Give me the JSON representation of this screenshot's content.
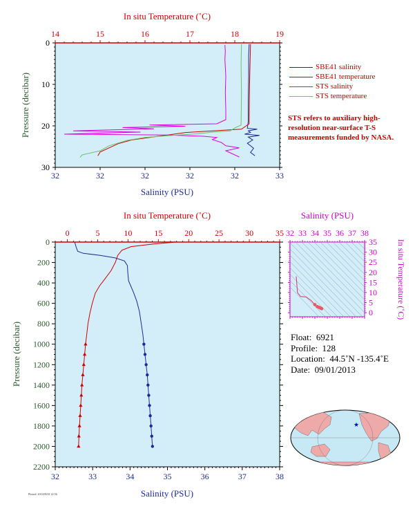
{
  "chart_data": [
    {
      "id": "top",
      "type": "line",
      "title_top_axis": "In situ Temperature (˚C)",
      "xlabel": "Salinity (PSU)",
      "ylabel": "Pressure (decibar)",
      "y_range": [
        0,
        30
      ],
      "y_ticks": [
        "0",
        "10",
        "20",
        "30"
      ],
      "temp_range": [
        14,
        19
      ],
      "temp_ticks": [
        "14",
        "15",
        "16",
        "17",
        "18",
        "19"
      ],
      "sal_ticks": [
        "32",
        "32",
        "32",
        "32",
        "32",
        "33"
      ],
      "series": [
        {
          "name": "SBE41 salinity",
          "color": "#1a2a9a",
          "points": [
            [
              18.32,
              0.3
            ],
            [
              18.31,
              3
            ],
            [
              18.31,
              8
            ],
            [
              18.3,
              14
            ],
            [
              18.3,
              19
            ],
            [
              18.28,
              20.6
            ],
            [
              18.5,
              20.8
            ],
            [
              18.3,
              21.2
            ],
            [
              18.35,
              21.6
            ],
            [
              18.22,
              22.0
            ],
            [
              18.55,
              22.3
            ],
            [
              18.3,
              22.7
            ],
            [
              18.4,
              23.4
            ],
            [
              18.28,
              24.2
            ],
            [
              18.42,
              25.4
            ],
            [
              18.35,
              26.4
            ],
            [
              18.45,
              27.2
            ]
          ]
        },
        {
          "name": "SBE41 temperature",
          "color": "#cc0000",
          "points": [
            [
              18.35,
              0.3
            ],
            [
              18.33,
              10
            ],
            [
              18.32,
              19.5
            ],
            [
              18.15,
              20.8
            ],
            [
              17.5,
              21.2
            ],
            [
              16.9,
              21.6
            ],
            [
              16.5,
              22.2
            ],
            [
              16.1,
              22.8
            ],
            [
              15.7,
              23.4
            ],
            [
              15.4,
              24.3
            ],
            [
              15.2,
              25.3
            ],
            [
              15.0,
              26.3
            ],
            [
              14.95,
              27.2
            ]
          ]
        },
        {
          "name": "STS salinity",
          "color": "#dd00dd",
          "points": [
            [
              17.78,
              0.5
            ],
            [
              17.79,
              2
            ],
            [
              17.78,
              4
            ],
            [
              17.8,
              8
            ],
            [
              17.79,
              12
            ],
            [
              17.8,
              16
            ],
            [
              17.8,
              18.5
            ],
            [
              17.6,
              19.5
            ],
            [
              16.1,
              19.8
            ],
            [
              16.9,
              20.1
            ],
            [
              15.5,
              20.4
            ],
            [
              16.2,
              20.7
            ],
            [
              14.4,
              21.2
            ],
            [
              15.9,
              21.5
            ],
            [
              14.8,
              21.8
            ],
            [
              14.2,
              22.0
            ],
            [
              16.5,
              22.2
            ],
            [
              17.3,
              22.5
            ],
            [
              17.6,
              22.8
            ],
            [
              17.5,
              23.3
            ],
            [
              17.7,
              24.0
            ],
            [
              17.8,
              24.8
            ],
            [
              18.1,
              25.3
            ],
            [
              17.8,
              26.0
            ],
            [
              18.0,
              27.0
            ],
            [
              18.1,
              27.5
            ]
          ]
        },
        {
          "name": "STS temperature",
          "color": "#6cc06c",
          "points": [
            [
              18.15,
              0.3
            ],
            [
              18.14,
              5
            ],
            [
              18.15,
              12
            ],
            [
              18.14,
              19.8
            ],
            [
              18.0,
              20.5
            ],
            [
              17.9,
              21.2
            ],
            [
              17.5,
              21.5
            ],
            [
              17.2,
              21.9
            ],
            [
              16.6,
              22.3
            ],
            [
              16.0,
              22.8
            ],
            [
              15.6,
              23.5
            ],
            [
              15.2,
              24.8
            ],
            [
              15.0,
              26.0
            ],
            [
              14.6,
              27.0
            ],
            [
              14.55,
              27.6
            ]
          ]
        }
      ],
      "legend_position": "right",
      "note": "STS refers to auxiliary high-resolution near-surface T-S measurements funded by NASA."
    },
    {
      "id": "bottom",
      "type": "line",
      "title_top_axis": "In situ Temperature (˚C)",
      "xlabel": "Salinity (PSU)",
      "ylabel": "Pressure (decibar)",
      "y_range": [
        0,
        2200
      ],
      "y_ticks": [
        "0",
        "200",
        "400",
        "600",
        "800",
        "1000",
        "1200",
        "1400",
        "1600",
        "1800",
        "2000",
        "2200"
      ],
      "temp_range": [
        -2,
        35
      ],
      "temp_ticks": [
        "0",
        "5",
        "10",
        "15",
        "20",
        "25",
        "30",
        "35"
      ],
      "sal_range": [
        32,
        38
      ],
      "sal_ticks": [
        "32",
        "33",
        "34",
        "35",
        "36",
        "37",
        "38"
      ],
      "series": [
        {
          "name": "Salinity",
          "color": "#1a2a9a",
          "points": [
            [
              32.52,
              0
            ],
            [
              32.56,
              50
            ],
            [
              32.6,
              90
            ],
            [
              32.75,
              110
            ],
            [
              33.2,
              130
            ],
            [
              33.6,
              155
            ],
            [
              33.85,
              185
            ],
            [
              33.93,
              230
            ],
            [
              33.94,
              300
            ],
            [
              33.96,
              380
            ],
            [
              34.02,
              430
            ],
            [
              34.1,
              500
            ],
            [
              34.18,
              580
            ],
            [
              34.25,
              680
            ],
            [
              34.3,
              800
            ],
            [
              34.34,
              900
            ],
            [
              34.37,
              1000
            ],
            [
              34.4,
              1100
            ],
            [
              34.43,
              1200
            ],
            [
              34.46,
              1300
            ],
            [
              34.48,
              1400
            ],
            [
              34.5,
              1500
            ],
            [
              34.52,
              1600
            ],
            [
              34.54,
              1700
            ],
            [
              34.56,
              1800
            ],
            [
              34.58,
              1900
            ],
            [
              34.6,
              2000
            ]
          ]
        },
        {
          "name": "Temperature",
          "color": "#cc0000",
          "points": [
            [
              18.0,
              0
            ],
            [
              14.0,
              20
            ],
            [
              10.5,
              45
            ],
            [
              9.0,
              80
            ],
            [
              8.3,
              130
            ],
            [
              7.9,
              200
            ],
            [
              7.2,
              280
            ],
            [
              6.2,
              360
            ],
            [
              5.3,
              430
            ],
            [
              4.6,
              500
            ],
            [
              4.1,
              600
            ],
            [
              3.7,
              700
            ],
            [
              3.4,
              800
            ],
            [
              3.2,
              900
            ],
            [
              3.0,
              1000
            ],
            [
              2.85,
              1100
            ],
            [
              2.7,
              1200
            ],
            [
              2.55,
              1300
            ],
            [
              2.4,
              1400
            ],
            [
              2.3,
              1500
            ],
            [
              2.2,
              1600
            ],
            [
              2.1,
              1700
            ],
            [
              2.0,
              1800
            ],
            [
              1.9,
              1900
            ],
            [
              1.85,
              2000
            ]
          ]
        }
      ]
    },
    {
      "id": "ts",
      "type": "scatter",
      "title_top_axis": "Salinity (PSU)",
      "ylabel_right": "In situ Temperature (˚C)",
      "x_ticks": [
        "32",
        "33",
        "34",
        "35",
        "36",
        "37",
        "38"
      ],
      "y_ticks": [
        "0",
        "5",
        "10",
        "15",
        "20",
        "25",
        "30",
        "35"
      ],
      "x_range": [
        32,
        38
      ],
      "y_range": [
        -2,
        35
      ],
      "points": [
        [
          32.5,
          18.0
        ],
        [
          32.55,
          14
        ],
        [
          32.6,
          10
        ],
        [
          32.85,
          8
        ],
        [
          33.3,
          7.8
        ],
        [
          33.7,
          6
        ],
        [
          34.0,
          4
        ],
        [
          34.2,
          3
        ],
        [
          34.35,
          2.6
        ],
        [
          34.45,
          2.3
        ],
        [
          34.55,
          2.0
        ]
      ]
    }
  ],
  "info": {
    "float_label": "Float:",
    "float_value": "6921",
    "profile_label": "Profile:",
    "profile_value": "128",
    "location_label": "Location:",
    "location_value": "44.5˚N  -135.4˚E",
    "date_label": "Date:",
    "date_value": "09/01/2013"
  },
  "credit": "Plotted: 2013/09/01 22:56"
}
